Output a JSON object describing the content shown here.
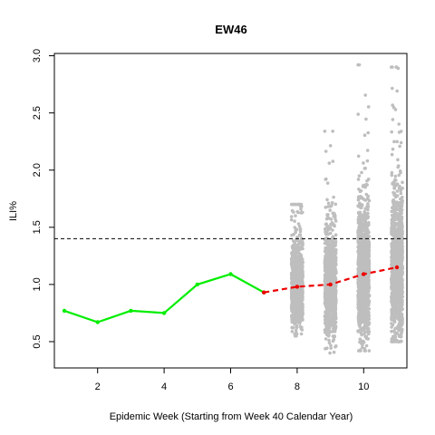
{
  "chart_data": {
    "type": "scatter",
    "title": "EW46",
    "xlabel": "Epidemic Week (Starting from Week 40 Calendar Year)",
    "ylabel": "ILI%",
    "xlim": [
      0.7,
      11.3
    ],
    "ylim": [
      0.27,
      3.02
    ],
    "x_ticks": [
      2,
      4,
      6,
      8,
      10
    ],
    "y_ticks": [
      0.5,
      1.0,
      1.5,
      2.0,
      2.5,
      3.0
    ],
    "y_tick_labels": [
      "0.5",
      "1.0",
      "1.5",
      "2.0",
      "2.5",
      "3.0"
    ],
    "grid": false,
    "legend": "none",
    "baseline": {
      "y": 1.4,
      "style": "dashed",
      "color": "#000000"
    },
    "series": [
      {
        "role": "observed",
        "color": "#00ee00",
        "style": "solid",
        "x": [
          1,
          2,
          3,
          4,
          5,
          6,
          7
        ],
        "y": [
          0.77,
          0.67,
          0.77,
          0.75,
          1.0,
          1.09,
          0.93
        ]
      },
      {
        "role": "forecast-mean",
        "color": "#ee0000",
        "style": "dashed",
        "x": [
          7,
          8,
          9,
          10,
          11
        ],
        "y": [
          0.93,
          0.98,
          1.0,
          1.09,
          1.15
        ]
      }
    ],
    "forecast_distribution": {
      "color": "#bebebe",
      "weeks": [
        {
          "x": 8,
          "center": 0.98,
          "spread": 0.17,
          "min": 0.55,
          "max": 1.7,
          "n": 1100
        },
        {
          "x": 9,
          "center": 1.0,
          "spread": 0.21,
          "min": 0.4,
          "max": 2.34,
          "n": 1100
        },
        {
          "x": 10,
          "center": 1.09,
          "spread": 0.26,
          "min": 0.42,
          "max": 2.92,
          "n": 1100
        },
        {
          "x": 11,
          "center": 1.15,
          "spread": 0.3,
          "min": 0.5,
          "max": 2.9,
          "n": 1100
        }
      ]
    }
  }
}
